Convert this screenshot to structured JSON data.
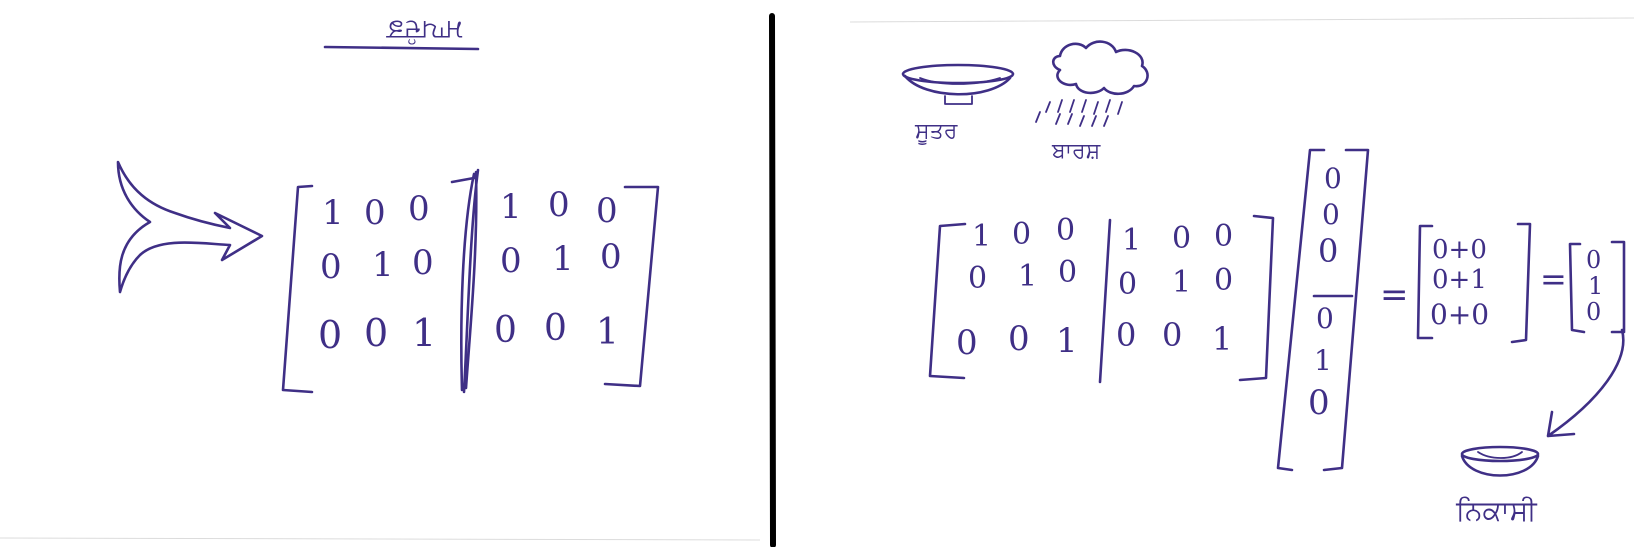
{
  "left_panel": {
    "title": "ਮਾਪਦੰਡ",
    "augmented_matrix": [
      [
        "1",
        "0",
        "0",
        "1",
        "0",
        "0"
      ],
      [
        "0",
        "1",
        "0",
        "0",
        "1",
        "0"
      ],
      [
        "0",
        "0",
        "1",
        "0",
        "0",
        "1"
      ]
    ]
  },
  "right_panel": {
    "label_source": "ਸੂਤਰ",
    "label_rain": "ਬਾਰਸ਼",
    "label_bowl": "ਨਿਕਾਸੀ",
    "augmented_matrix": [
      [
        "1",
        "0",
        "0",
        "1",
        "0",
        "0"
      ],
      [
        "0",
        "1",
        "0",
        "0",
        "1",
        "0"
      ],
      [
        "0",
        "0",
        "1",
        "0",
        "0",
        "1"
      ]
    ],
    "column_vector": [
      "0",
      "0",
      "0",
      "0",
      "1",
      "0"
    ],
    "sum_vector": [
      "0+0",
      "0+1",
      "0+0"
    ],
    "result_vector": [
      "0",
      "1",
      "0"
    ],
    "equals": "="
  }
}
